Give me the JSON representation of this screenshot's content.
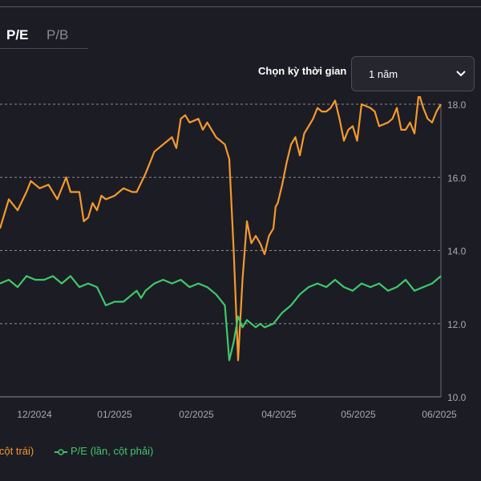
{
  "tabs": [
    {
      "label": "P/E",
      "active": true
    },
    {
      "label": "P/B",
      "active": false
    }
  ],
  "period": {
    "label": "Chọn kỳ thời gian",
    "selected": "1 năm"
  },
  "legend": {
    "orange_label": "(lần, cột trái)",
    "green_label": "P/E (lần, cột phải)"
  },
  "chart_data": {
    "type": "line",
    "x_ticks": [
      "12/2024",
      "01/2025",
      "02/2025",
      "04/2025",
      "05/2025",
      "06/2025"
    ],
    "y_right_ticks": [
      "18.0",
      "16.0",
      "14.0",
      "12.0",
      "10.0"
    ],
    "y_right_range": [
      10,
      18
    ],
    "x_range": [
      0,
      100
    ],
    "grid": true,
    "legend_position": "bottom-left",
    "series": [
      {
        "color": "#f39a2e",
        "axis": "right-scale",
        "x": [
          0,
          2,
          4,
          6,
          7,
          9,
          11,
          13,
          15,
          16,
          18,
          19,
          20,
          21,
          22,
          23,
          24,
          26,
          28,
          30,
          31,
          33,
          35,
          36,
          38,
          39,
          40,
          41,
          42,
          43,
          45,
          46,
          47,
          49,
          51,
          52,
          53,
          54,
          55,
          56,
          57,
          58,
          59,
          60,
          61,
          62,
          62.5,
          63,
          64,
          65,
          66,
          67,
          68,
          69,
          70,
          71,
          72,
          73,
          74,
          75,
          76,
          77,
          78,
          79,
          80,
          81,
          82,
          84,
          85,
          86,
          88,
          89,
          90,
          91,
          92,
          93,
          94,
          95,
          96,
          97,
          98,
          99,
          100
        ],
        "y": [
          14.6,
          15.4,
          15.1,
          15.6,
          15.9,
          15.7,
          15.8,
          15.4,
          16.0,
          15.6,
          15.6,
          14.8,
          14.9,
          15.3,
          15.1,
          15.5,
          15.4,
          15.5,
          15.7,
          15.6,
          15.6,
          16.1,
          16.7,
          16.8,
          17.0,
          17.1,
          16.8,
          17.6,
          17.7,
          17.5,
          17.6,
          17.3,
          17.5,
          17.1,
          16.9,
          16.5,
          14.0,
          11.0,
          13.2,
          14.8,
          14.2,
          14.4,
          14.2,
          13.9,
          14.4,
          14.6,
          15.2,
          15.3,
          15.8,
          16.4,
          16.9,
          17.1,
          16.6,
          17.2,
          17.4,
          17.6,
          17.9,
          17.8,
          17.8,
          17.9,
          18.1,
          17.6,
          17.0,
          17.3,
          17.4,
          17.0,
          18.0,
          17.9,
          17.8,
          17.4,
          17.5,
          17.6,
          17.9,
          17.3,
          17.3,
          17.5,
          17.2,
          18.3,
          17.9,
          17.6,
          17.5,
          17.8,
          18.0
        ]
      },
      {
        "name": "P/E",
        "color": "#3ec96b",
        "axis": "right-scale",
        "x": [
          0,
          2,
          4,
          6,
          8,
          10,
          12,
          14,
          16,
          18,
          20,
          22,
          24,
          26,
          28,
          30,
          31,
          32,
          33,
          35,
          37,
          39,
          41,
          43,
          45,
          47,
          49,
          51,
          52,
          53,
          54,
          55,
          56,
          57,
          58,
          59,
          60,
          62,
          64,
          66,
          68,
          70,
          72,
          74,
          76,
          78,
          80,
          82,
          84,
          86,
          88,
          90,
          92,
          94,
          96,
          98,
          99,
          100
        ],
        "y": [
          13.1,
          13.2,
          13.0,
          13.3,
          13.2,
          13.2,
          13.3,
          13.1,
          13.3,
          13.0,
          13.1,
          13.0,
          12.5,
          12.6,
          12.6,
          12.8,
          12.9,
          12.7,
          12.9,
          13.1,
          13.2,
          13.1,
          13.2,
          13.0,
          13.1,
          13.0,
          12.8,
          12.5,
          11.0,
          11.5,
          12.2,
          11.9,
          12.1,
          12.0,
          11.9,
          12.0,
          11.9,
          12.0,
          12.3,
          12.5,
          12.8,
          13.0,
          13.1,
          13.0,
          13.2,
          13.0,
          12.9,
          13.1,
          13.0,
          13.1,
          12.9,
          13.0,
          13.2,
          12.9,
          13.0,
          13.1,
          13.2,
          13.3
        ]
      }
    ]
  }
}
